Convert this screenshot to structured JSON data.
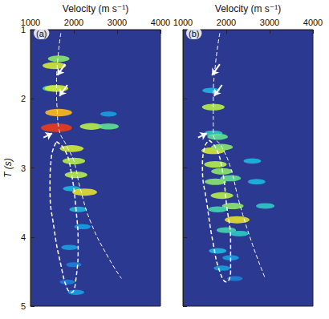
{
  "chart_data": [
    {
      "type": "heatmap",
      "title": "(a)",
      "xlabel": "Velocity (m s⁻¹)",
      "ylabel": "T (s)",
      "xlim": [
        1000,
        4000
      ],
      "xticks": [
        1000,
        2000,
        3000,
        4000
      ],
      "ylim": [
        1,
        5
      ],
      "yticks": [
        1,
        2,
        3,
        4,
        5
      ],
      "grid": false,
      "clim": [
        0,
        1
      ],
      "cells": [
        [
          1650,
          1.42,
          0.5
        ],
        [
          1550,
          1.52,
          0.6
        ],
        [
          1500,
          1.85,
          0.4
        ],
        [
          1600,
          1.85,
          0.6
        ],
        [
          1650,
          2.2,
          0.75
        ],
        [
          1600,
          2.42,
          0.95
        ],
        [
          2400,
          2.4,
          0.55
        ],
        [
          2800,
          2.4,
          0.45
        ],
        [
          2800,
          2.22,
          0.25
        ],
        [
          1950,
          2.72,
          0.6
        ],
        [
          2000,
          2.9,
          0.55
        ],
        [
          2050,
          3.1,
          0.55
        ],
        [
          1950,
          3.3,
          0.3
        ],
        [
          2250,
          3.35,
          0.65
        ],
        [
          2100,
          3.6,
          0.3
        ],
        [
          2200,
          3.85,
          0.25
        ],
        [
          1900,
          4.15,
          0.25
        ],
        [
          2000,
          4.4,
          0.2
        ],
        [
          1850,
          4.65,
          0.2
        ],
        [
          2050,
          4.8,
          0.25
        ]
      ],
      "pick": {
        "x": [
          1700,
          1620,
          1600,
          1620,
          1650,
          1850,
          2000,
          2150,
          2400,
          2800,
          3100
        ],
        "y": [
          1.05,
          1.5,
          1.85,
          2.2,
          2.42,
          2.7,
          2.9,
          3.3,
          3.8,
          4.3,
          4.6
        ],
        "color": "#ffffff",
        "line_style": "dashed"
      },
      "outline": {
        "x": [
          1600,
          1800,
          1950,
          2050,
          2100,
          2050,
          1950,
          1850,
          1700,
          1550,
          1450,
          1480,
          1600
        ],
        "y": [
          2.62,
          2.75,
          3.1,
          3.6,
          4.1,
          4.6,
          4.8,
          4.75,
          4.4,
          3.9,
          3.3,
          2.85,
          2.62
        ],
        "color": "#ffffff",
        "line_style": "dashed"
      },
      "arrows": [
        {
          "from": [
            1800,
            1.5
          ],
          "to": [
            1620,
            1.66
          ]
        },
        {
          "from": [
            1850,
            1.8
          ],
          "to": [
            1670,
            1.96
          ]
        },
        {
          "from": [
            1300,
            2.56
          ],
          "to": [
            1500,
            2.5
          ]
        }
      ]
    },
    {
      "type": "heatmap",
      "title": "(b)",
      "xlabel": "Velocity (m s⁻¹)",
      "xlim": [
        1000,
        4000
      ],
      "xticks": [
        1000,
        2000,
        3000,
        4000
      ],
      "ylim": [
        1,
        5
      ],
      "yticks": [
        1,
        2,
        3,
        4,
        5
      ],
      "grid": false,
      "tick_labels": "x",
      "clim": [
        0,
        1
      ],
      "cells": [
        [
          1650,
          1.88,
          0.3
        ],
        [
          1700,
          2.12,
          0.55
        ],
        [
          1700,
          2.5,
          0.35
        ],
        [
          1800,
          2.55,
          0.45
        ],
        [
          1700,
          2.75,
          0.6
        ],
        [
          1900,
          2.7,
          0.5
        ],
        [
          2600,
          2.9,
          0.3
        ],
        [
          1750,
          2.95,
          0.55
        ],
        [
          1900,
          3.05,
          0.5
        ],
        [
          2100,
          3.15,
          0.45
        ],
        [
          2700,
          3.2,
          0.3
        ],
        [
          1750,
          3.2,
          0.5
        ],
        [
          1900,
          3.4,
          0.55
        ],
        [
          2150,
          3.55,
          0.5
        ],
        [
          2900,
          3.55,
          0.35
        ],
        [
          1800,
          3.6,
          0.4
        ],
        [
          2250,
          3.75,
          0.65
        ],
        [
          2000,
          3.9,
          0.4
        ],
        [
          2300,
          3.95,
          0.35
        ],
        [
          1800,
          4.2,
          0.3
        ],
        [
          2100,
          4.3,
          0.25
        ],
        [
          1900,
          4.45,
          0.25
        ],
        [
          2200,
          4.6,
          0.2
        ]
      ],
      "pick": {
        "x": [
          1850,
          1750,
          1700,
          1700,
          1900,
          2100,
          2300,
          2600,
          2900
        ],
        "y": [
          1.05,
          1.5,
          2.0,
          2.5,
          2.7,
          3.0,
          3.5,
          4.1,
          4.6
        ],
        "color": "#ffffff",
        "line_style": "dashed"
      },
      "outline": {
        "x": [
          1600,
          1750,
          1900,
          2000,
          2100,
          2100,
          2000,
          1850,
          1700,
          1550,
          1450,
          1500,
          1600
        ],
        "y": [
          2.6,
          2.7,
          3.0,
          3.5,
          4.1,
          4.5,
          4.65,
          4.5,
          4.1,
          3.5,
          3.0,
          2.7,
          2.6
        ],
        "color": "#ffffff",
        "line_style": "dashed"
      },
      "arrows": [
        {
          "from": [
            1850,
            1.5
          ],
          "to": [
            1670,
            1.66
          ]
        },
        {
          "from": [
            1900,
            1.8
          ],
          "to": [
            1720,
            1.96
          ]
        },
        {
          "from": [
            1350,
            2.56
          ],
          "to": [
            1550,
            2.5
          ]
        }
      ]
    }
  ]
}
